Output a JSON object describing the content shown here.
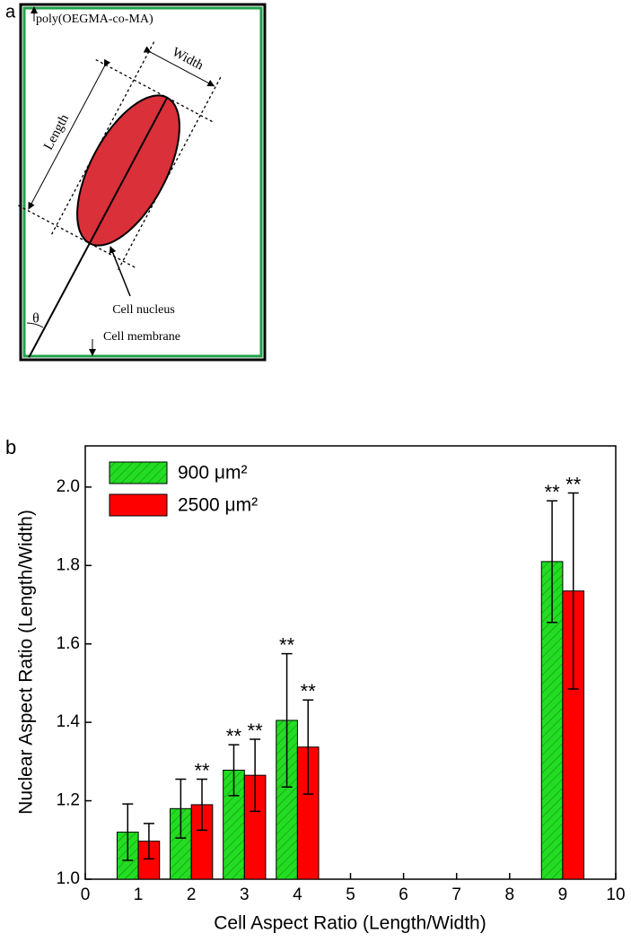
{
  "diagram": {
    "panel_label": "a",
    "polymer": "poly(OEGMA-co-MA)",
    "width": "Width",
    "length": "Length",
    "nucleus": "Cell nucleus",
    "angle": "θ",
    "membrane": "Cell membrane"
  },
  "chart_data": {
    "type": "bar",
    "panel_label": "b",
    "x_label": "Cell Aspect Ratio (Length/Width)",
    "y_label": "Nuclear Aspect Ratio (Length/Width)",
    "x": [
      1,
      2,
      3,
      4,
      9
    ],
    "series": [
      {
        "name": "900 μm²",
        "color": "#22dd22",
        "hatch": true,
        "values": [
          1.12,
          1.18,
          1.278,
          1.405,
          1.81
        ],
        "errors": [
          0.072,
          0.075,
          0.065,
          0.17,
          0.155
        ],
        "labels": [
          null,
          null,
          "**",
          "**",
          "**"
        ]
      },
      {
        "name": "2500 μm²",
        "color": "#ff0000",
        "hatch": false,
        "values": [
          1.097,
          1.19,
          1.265,
          1.337,
          1.735
        ],
        "errors": [
          0.045,
          0.065,
          0.092,
          0.12,
          0.25
        ],
        "labels": [
          null,
          "**",
          "**",
          "**",
          "**"
        ]
      }
    ],
    "xlim": [
      0,
      10
    ],
    "xticks": [
      0,
      1,
      2,
      3,
      4,
      5,
      6,
      7,
      8,
      9,
      10
    ],
    "ylim": [
      1.0,
      2.105
    ],
    "yticks": [
      {
        "value": 1,
        "label": "1.0"
      },
      1.2,
      1.4,
      1.6,
      1.8,
      {
        "value": 2,
        "label": "2.0"
      }
    ],
    "legend": "upper left"
  }
}
